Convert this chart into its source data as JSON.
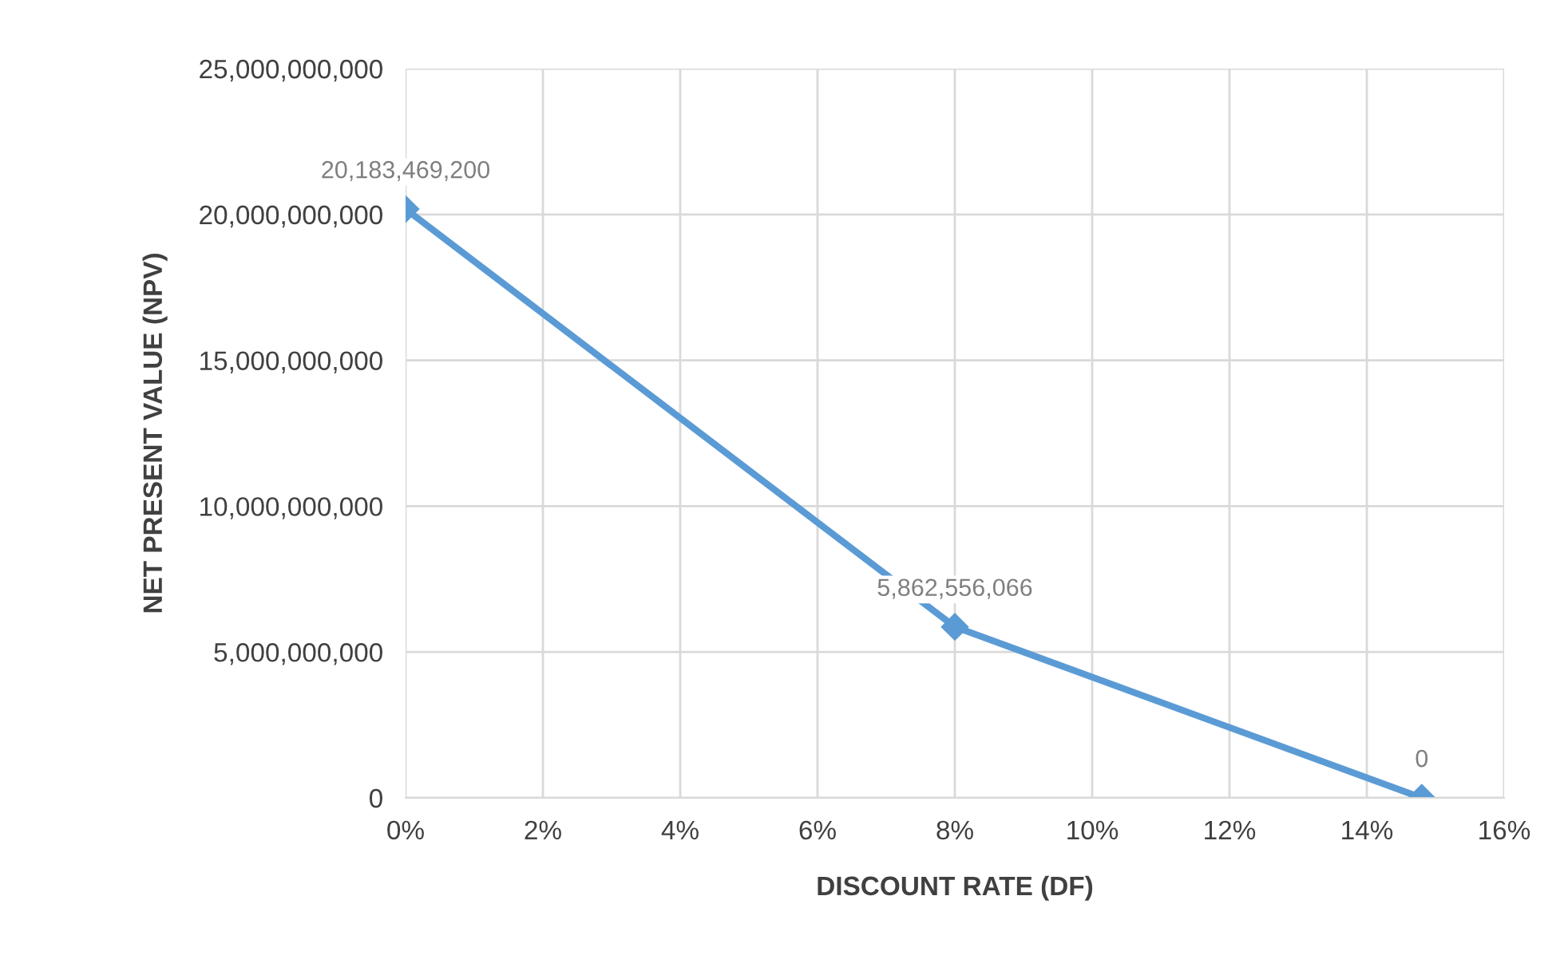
{
  "chart_data": {
    "type": "line",
    "xlabel": "DISCOUNT RATE (DF)",
    "ylabel": "NET PRESENT VALUE (NPV)",
    "x": [
      0,
      8,
      14.8
    ],
    "series": [
      {
        "color": "#5b9bd5",
        "values": [
          20183469200,
          5862556066,
          0
        ],
        "value_labels": [
          "20,183,469,200",
          "5,862,556,066",
          "0"
        ]
      }
    ],
    "marker": "diamond",
    "grid": true,
    "legend": false,
    "xlim": [
      0,
      16
    ],
    "xticks": [
      {
        "value": 0,
        "label": "0%"
      },
      {
        "value": 2,
        "label": "2%"
      },
      {
        "value": 4,
        "label": "4%"
      },
      {
        "value": 6,
        "label": "6%"
      },
      {
        "value": 8,
        "label": "8%"
      },
      {
        "value": 10,
        "label": "10%"
      },
      {
        "value": 12,
        "label": "12%"
      },
      {
        "value": 14,
        "label": "14%"
      },
      {
        "value": 16,
        "label": "16%"
      }
    ],
    "ylim": [
      0,
      25000000000
    ],
    "yticks": [
      {
        "value": 0,
        "label": "0"
      },
      {
        "value": 5000000000,
        "label": "5,000,000,000"
      },
      {
        "value": 10000000000,
        "label": "10,000,000,000"
      },
      {
        "value": 15000000000,
        "label": "15,000,000,000"
      },
      {
        "value": 20000000000,
        "label": "20,000,000,000"
      },
      {
        "value": 25000000000,
        "label": "25,000,000,000"
      }
    ]
  }
}
